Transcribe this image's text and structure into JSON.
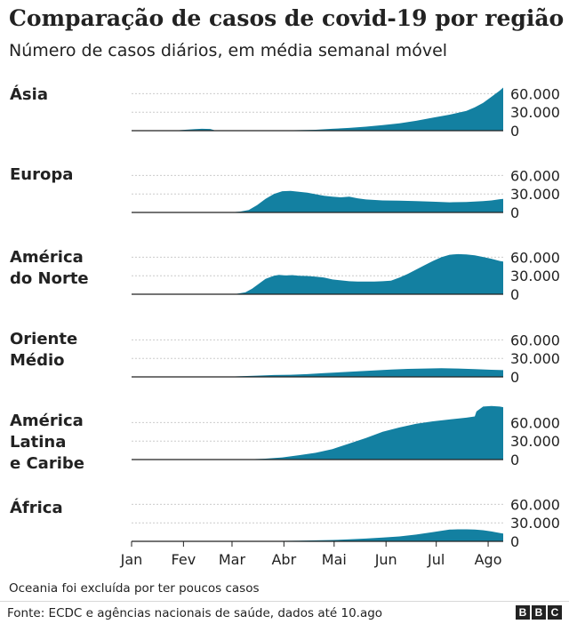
{
  "title": "Comparação de casos de covid-19 por região",
  "subtitle": "Número de casos diários, em média semanal móvel",
  "note": "Oceania foi excluída por ter poucos casos",
  "source": "Fonte: ECDC e agências nacionais de saúde, dados até 10.ago",
  "logo": [
    "B",
    "B",
    "C"
  ],
  "colors": {
    "area": "#1380a1",
    "grid": "#cccccc",
    "baseline": "#222222"
  },
  "chart_data": {
    "type": "area",
    "x_unit": "days since 1 Jan 2020",
    "x_domain": [
      0,
      222
    ],
    "ylim": [
      0,
      75000
    ],
    "y_ticks": [
      0,
      30000,
      60000
    ],
    "y_tick_labels": [
      "0",
      "30.000",
      "60.000"
    ],
    "month_ticks": [
      {
        "label": "Jan",
        "day": 0
      },
      {
        "label": "Fev",
        "day": 31
      },
      {
        "label": "Mar",
        "day": 60
      },
      {
        "label": "Abr",
        "day": 91
      },
      {
        "label": "Mai",
        "day": 121
      },
      {
        "label": "Jun",
        "day": 152
      },
      {
        "label": "Jul",
        "day": 182
      },
      {
        "label": "Ago",
        "day": 213
      }
    ],
    "series": [
      {
        "name": "Ásia",
        "label_lines": [
          "Ásia"
        ],
        "points": [
          [
            0,
            0
          ],
          [
            25,
            0
          ],
          [
            30,
            1000
          ],
          [
            38,
            2500
          ],
          [
            42,
            3000
          ],
          [
            47,
            2800
          ],
          [
            50,
            500
          ],
          [
            55,
            200
          ],
          [
            70,
            300
          ],
          [
            90,
            400
          ],
          [
            100,
            800
          ],
          [
            110,
            1500
          ],
          [
            120,
            3000
          ],
          [
            130,
            4500
          ],
          [
            140,
            6500
          ],
          [
            150,
            9000
          ],
          [
            160,
            12000
          ],
          [
            170,
            16000
          ],
          [
            180,
            21000
          ],
          [
            190,
            26000
          ],
          [
            200,
            32000
          ],
          [
            205,
            38000
          ],
          [
            210,
            45000
          ],
          [
            215,
            55000
          ],
          [
            220,
            65000
          ],
          [
            222,
            70000
          ]
        ]
      },
      {
        "name": "Europa",
        "label_lines": [
          "Europa"
        ],
        "points": [
          [
            0,
            0
          ],
          [
            55,
            0
          ],
          [
            60,
            500
          ],
          [
            65,
            1500
          ],
          [
            70,
            4000
          ],
          [
            75,
            12000
          ],
          [
            80,
            22000
          ],
          [
            85,
            30000
          ],
          [
            90,
            34500
          ],
          [
            95,
            35000
          ],
          [
            100,
            33500
          ],
          [
            105,
            32000
          ],
          [
            110,
            29500
          ],
          [
            115,
            27000
          ],
          [
            120,
            25500
          ],
          [
            125,
            24500
          ],
          [
            130,
            25500
          ],
          [
            135,
            23000
          ],
          [
            140,
            21000
          ],
          [
            150,
            19500
          ],
          [
            160,
            19000
          ],
          [
            170,
            18500
          ],
          [
            180,
            17500
          ],
          [
            190,
            16500
          ],
          [
            200,
            17000
          ],
          [
            210,
            18500
          ],
          [
            215,
            19500
          ],
          [
            220,
            21500
          ],
          [
            222,
            22000
          ]
        ]
      },
      {
        "name": "América do Norte",
        "label_lines": [
          "América",
          "do Norte"
        ],
        "points": [
          [
            0,
            0
          ],
          [
            55,
            0
          ],
          [
            62,
            500
          ],
          [
            68,
            3000
          ],
          [
            72,
            9000
          ],
          [
            76,
            17000
          ],
          [
            80,
            25000
          ],
          [
            85,
            30000
          ],
          [
            88,
            31500
          ],
          [
            92,
            30500
          ],
          [
            96,
            31000
          ],
          [
            100,
            30000
          ],
          [
            105,
            29500
          ],
          [
            110,
            28500
          ],
          [
            115,
            27000
          ],
          [
            120,
            24000
          ],
          [
            125,
            22500
          ],
          [
            130,
            21000
          ],
          [
            135,
            20500
          ],
          [
            140,
            20500
          ],
          [
            145,
            20500
          ],
          [
            150,
            21000
          ],
          [
            155,
            22000
          ],
          [
            160,
            27000
          ],
          [
            165,
            33000
          ],
          [
            170,
            40000
          ],
          [
            175,
            47000
          ],
          [
            180,
            54000
          ],
          [
            185,
            60000
          ],
          [
            190,
            64000
          ],
          [
            195,
            65000
          ],
          [
            200,
            64500
          ],
          [
            205,
            63000
          ],
          [
            210,
            60500
          ],
          [
            215,
            57500
          ],
          [
            220,
            54000
          ],
          [
            222,
            53000
          ]
        ]
      },
      {
        "name": "Oriente Médio",
        "label_lines": [
          "Oriente",
          "Médio"
        ],
        "points": [
          [
            0,
            0
          ],
          [
            55,
            0
          ],
          [
            65,
            1000
          ],
          [
            75,
            2000
          ],
          [
            85,
            3000
          ],
          [
            95,
            3500
          ],
          [
            105,
            4500
          ],
          [
            115,
            6000
          ],
          [
            125,
            7500
          ],
          [
            135,
            9000
          ],
          [
            145,
            10500
          ],
          [
            155,
            12000
          ],
          [
            165,
            13000
          ],
          [
            175,
            13500
          ],
          [
            185,
            14000
          ],
          [
            195,
            13500
          ],
          [
            205,
            12500
          ],
          [
            215,
            11500
          ],
          [
            222,
            11000
          ]
        ]
      },
      {
        "name": "América Latina e Caribe",
        "label_lines": [
          "América",
          "Latina",
          "e Caribe"
        ],
        "points": [
          [
            0,
            0
          ],
          [
            60,
            0
          ],
          [
            70,
            300
          ],
          [
            80,
            1500
          ],
          [
            90,
            3500
          ],
          [
            100,
            7000
          ],
          [
            110,
            11000
          ],
          [
            120,
            17000
          ],
          [
            130,
            26000
          ],
          [
            140,
            35000
          ],
          [
            150,
            45000
          ],
          [
            160,
            52000
          ],
          [
            170,
            58000
          ],
          [
            180,
            62000
          ],
          [
            190,
            65000
          ],
          [
            200,
            68000
          ],
          [
            205,
            70000
          ],
          [
            206,
            78000
          ],
          [
            210,
            86000
          ],
          [
            215,
            87000
          ],
          [
            220,
            86000
          ],
          [
            222,
            85000
          ]
        ]
      },
      {
        "name": "África",
        "label_lines": [
          "África"
        ],
        "points": [
          [
            0,
            0
          ],
          [
            70,
            0
          ],
          [
            80,
            300
          ],
          [
            90,
            700
          ],
          [
            100,
            1100
          ],
          [
            110,
            1600
          ],
          [
            120,
            2200
          ],
          [
            130,
            3200
          ],
          [
            140,
            4500
          ],
          [
            150,
            6000
          ],
          [
            160,
            8000
          ],
          [
            170,
            11000
          ],
          [
            180,
            15000
          ],
          [
            190,
            19000
          ],
          [
            195,
            19500
          ],
          [
            200,
            19500
          ],
          [
            205,
            19000
          ],
          [
            210,
            18000
          ],
          [
            215,
            16000
          ],
          [
            220,
            13500
          ],
          [
            222,
            12500
          ]
        ]
      }
    ]
  }
}
